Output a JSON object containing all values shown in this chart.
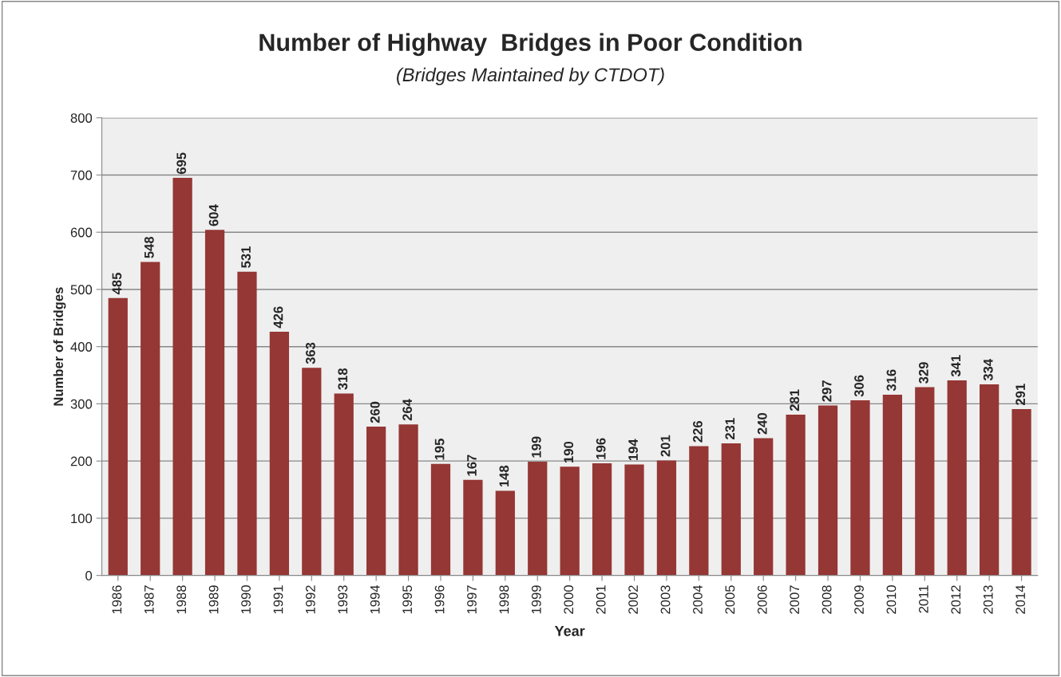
{
  "chart_data": {
    "type": "bar",
    "title": "Number of Highway  Bridges in Poor Condition",
    "subtitle": "(Bridges Maintained by CTDOT)",
    "xlabel": "Year",
    "ylabel": "Number of Bridges",
    "categories": [
      "1986",
      "1987",
      "1988",
      "1989",
      "1990",
      "1991",
      "1992",
      "1993",
      "1994",
      "1995",
      "1996",
      "1997",
      "1998",
      "1999",
      "2000",
      "2001",
      "2002",
      "2003",
      "2004",
      "2005",
      "2006",
      "2007",
      "2008",
      "2009",
      "2010",
      "2011",
      "2012",
      "2013",
      "2014"
    ],
    "values": [
      485,
      548,
      695,
      604,
      531,
      426,
      363,
      318,
      260,
      264,
      195,
      167,
      148,
      199,
      190,
      196,
      194,
      201,
      226,
      231,
      240,
      281,
      297,
      306,
      316,
      329,
      341,
      334,
      291
    ],
    "color": "#953735",
    "ylim": [
      0,
      800
    ],
    "yticks": [
      0,
      100,
      200,
      300,
      400,
      500,
      600,
      700,
      800
    ],
    "grid": "y",
    "data_labels": true
  }
}
